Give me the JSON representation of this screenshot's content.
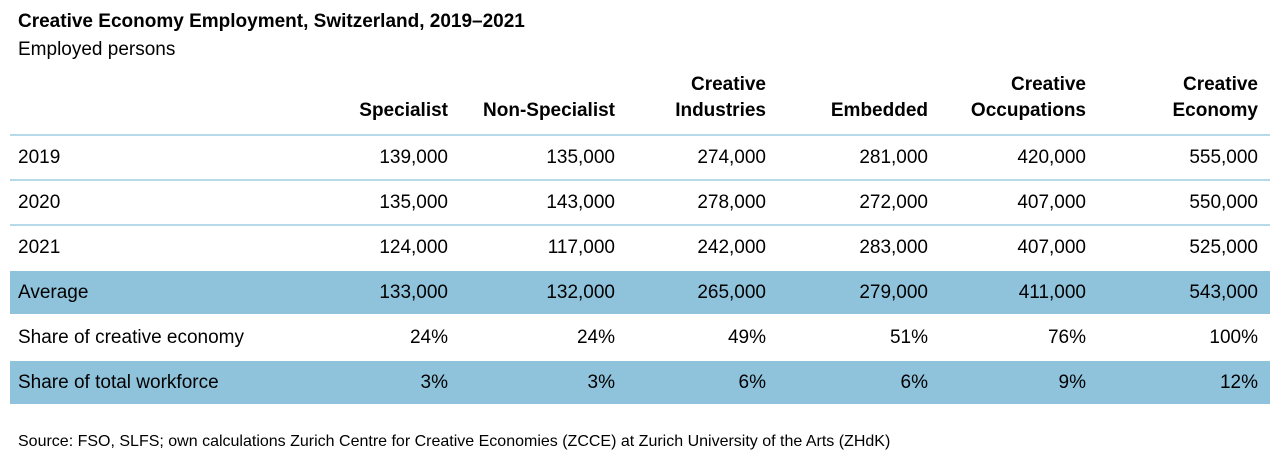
{
  "title": "Creative Economy Employment, Switzerland, 2019–2021",
  "subtitle": "Employed persons",
  "source": "Source: FSO, SLFS; own calculations Zurich Centre for Creative Economies (ZCCE) at Zurich University of the Arts (ZHdK)",
  "colors": {
    "highlight_row": "#8fc3dc",
    "divider_line": "#b7dae9",
    "text": "#000000"
  },
  "table": {
    "columns": [
      "Specialist",
      "Non-Specialist",
      "Creative\nIndustries",
      "Embedded",
      "Creative\nOccupations",
      "Creative\nEconomy"
    ],
    "rows": [
      {
        "label": "2019",
        "values": [
          "139,000",
          "135,000",
          "274,000",
          "281,000",
          "420,000",
          "555,000"
        ]
      },
      {
        "label": "2020",
        "values": [
          "135,000",
          "143,000",
          "278,000",
          "272,000",
          "407,000",
          "550,000"
        ]
      },
      {
        "label": "2021",
        "values": [
          "124,000",
          "117,000",
          "242,000",
          "283,000",
          "407,000",
          "525,000"
        ]
      },
      {
        "label": "Average",
        "values": [
          "133,000",
          "132,000",
          "265,000",
          "279,000",
          "411,000",
          "543,000"
        ]
      },
      {
        "label": "Share of creative economy",
        "values": [
          "24%",
          "24%",
          "49%",
          "51%",
          "76%",
          "100%"
        ]
      },
      {
        "label": "Share of total workforce",
        "values": [
          "3%",
          "3%",
          "6%",
          "6%",
          "9%",
          "12%"
        ]
      }
    ]
  },
  "chart_data": {
    "type": "table",
    "title": "Creative Economy Employment, Switzerland, 2019–2021",
    "subtitle": "Employed persons",
    "columns": [
      "Specialist",
      "Non-Specialist",
      "Creative Industries",
      "Embedded",
      "Creative Occupations",
      "Creative Economy"
    ],
    "rows": [
      {
        "label": "2019",
        "values": [
          139000,
          135000,
          274000,
          281000,
          420000,
          555000
        ]
      },
      {
        "label": "2020",
        "values": [
          135000,
          143000,
          278000,
          272000,
          407000,
          550000
        ]
      },
      {
        "label": "2021",
        "values": [
          124000,
          117000,
          242000,
          283000,
          407000,
          525000
        ]
      },
      {
        "label": "Average",
        "values": [
          133000,
          132000,
          265000,
          279000,
          411000,
          543000
        ]
      },
      {
        "label": "Share of creative economy",
        "values": [
          "24%",
          "24%",
          "49%",
          "51%",
          "76%",
          "100%"
        ]
      },
      {
        "label": "Share of total workforce",
        "values": [
          "3%",
          "3%",
          "6%",
          "6%",
          "9%",
          "12%"
        ]
      }
    ],
    "highlighted_rows": [
      "Average",
      "Share of total workforce"
    ],
    "highlight_color": "#8fc3dc",
    "source": "Source: FSO, SLFS; own calculations Zurich Centre for Creative Economies (ZCCE) at Zurich University of the Arts (ZHdK)"
  }
}
